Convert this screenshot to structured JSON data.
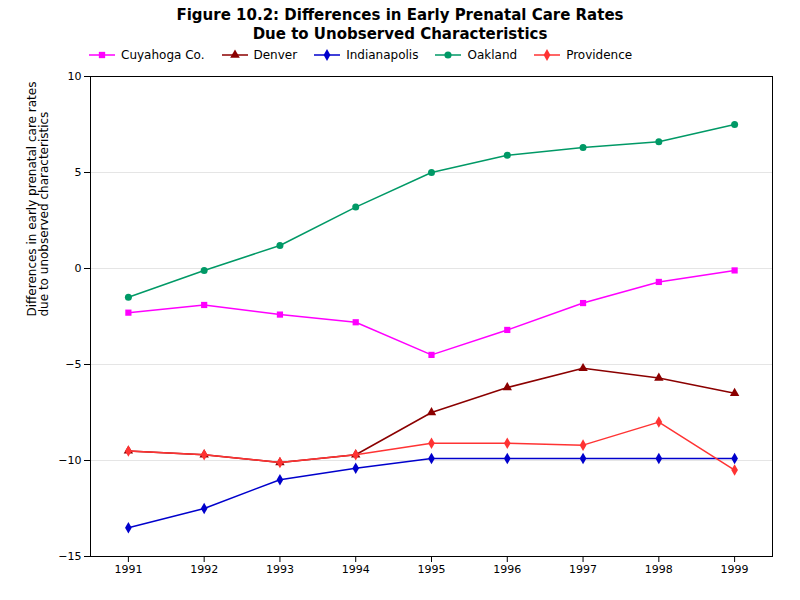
{
  "chart_data": {
    "type": "line",
    "title": "Figure 10.2:  Differences in Early Prenatal Care Rates\nDue to Unobserved Characteristics",
    "y_label": "Differences in early prenatal care rates\ndue to unobserved characteristics",
    "x": [
      1991,
      1992,
      1993,
      1994,
      1995,
      1996,
      1997,
      1998,
      1999
    ],
    "series": [
      {
        "name": "Cuyahoga Co.",
        "color": "#ff00ff",
        "marker": "square",
        "values": [
          -2.3,
          -1.9,
          -2.4,
          -2.8,
          -4.5,
          -3.2,
          -1.8,
          -0.7,
          -0.1
        ]
      },
      {
        "name": "Denver",
        "color": "#8B0000",
        "marker": "triangle",
        "values": [
          -9.5,
          -9.7,
          -10.1,
          -9.7,
          -7.5,
          -6.2,
          -5.2,
          -5.7,
          -6.5
        ]
      },
      {
        "name": "Indianapolis",
        "color": "#0000cc",
        "marker": "diamond",
        "values": [
          -13.5,
          -12.5,
          -11.0,
          -10.4,
          -9.9,
          -9.9,
          -9.9,
          -9.9,
          -9.9
        ]
      },
      {
        "name": "Oakland",
        "color": "#009966",
        "marker": "circle",
        "values": [
          -1.5,
          -0.1,
          1.2,
          3.2,
          5.0,
          5.9,
          6.3,
          6.6,
          7.5
        ]
      },
      {
        "name": "Providence",
        "color": "#ff3333",
        "marker": "diamond",
        "values": [
          -9.5,
          -9.7,
          -10.1,
          -9.7,
          -9.1,
          -9.1,
          -9.2,
          -8.0,
          -10.5
        ]
      }
    ],
    "xlim": [
      1990.5,
      1999.5
    ],
    "xticks": [
      1991,
      1992,
      1993,
      1994,
      1995,
      1996,
      1997,
      1998,
      1999
    ],
    "ylim": [
      -15,
      10
    ],
    "yticks": [
      -15,
      -10,
      -5,
      0,
      5,
      10
    ],
    "grid": true,
    "legend": "upper left"
  }
}
